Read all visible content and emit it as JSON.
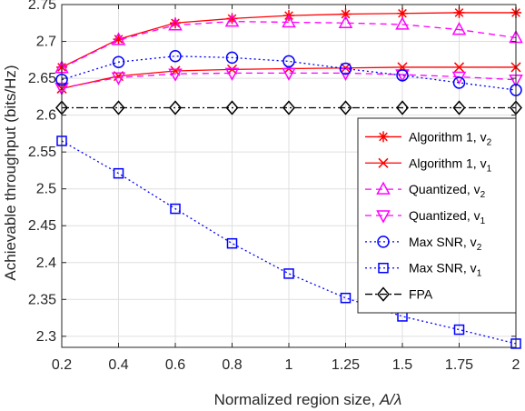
{
  "chart_data": {
    "type": "line",
    "xlabel_prefix": "Normalized region size, ",
    "xlabel_var": "A/λ",
    "ylabel": "Achievable throughput (bits/Hz)",
    "categories": [
      "0.2",
      "0.4",
      "0.6",
      "0.8",
      "1",
      "1.25",
      "1.5",
      "1.75",
      "2"
    ],
    "yticks": [
      "2.3",
      "2.35",
      "2.4",
      "2.45",
      "2.5",
      "2.55",
      "2.6",
      "2.65",
      "2.7",
      "2.75"
    ],
    "ylim": [
      2.285,
      2.75
    ],
    "grid": true,
    "legend_position": "right",
    "series": [
      {
        "name": "Algorithm 1, v",
        "sub": "2",
        "color": "#ff0000",
        "dash": "",
        "marker": "asterisk",
        "values": [
          2.665,
          2.703,
          2.725,
          2.731,
          2.735,
          2.737,
          2.738,
          2.739,
          2.739
        ]
      },
      {
        "name": "Algorithm 1, v",
        "sub": "1",
        "color": "#ff0000",
        "dash": "",
        "marker": "x",
        "values": [
          2.636,
          2.653,
          2.66,
          2.662,
          2.663,
          2.664,
          2.665,
          2.665,
          2.665
        ]
      },
      {
        "name": "Quantized, v",
        "sub": "2",
        "color": "#ff00ff",
        "dash": "7,5",
        "marker": "triangle-up",
        "values": [
          2.664,
          2.702,
          2.722,
          2.727,
          2.726,
          2.725,
          2.723,
          2.716,
          2.705
        ]
      },
      {
        "name": "Quantized, v",
        "sub": "1",
        "color": "#ff00ff",
        "dash": "7,5",
        "marker": "triangle-down",
        "values": [
          2.637,
          2.651,
          2.656,
          2.657,
          2.657,
          2.657,
          2.655,
          2.652,
          2.648
        ]
      },
      {
        "name": "Max SNR, v",
        "sub": "2",
        "color": "#0000ff",
        "dash": "2,3",
        "marker": "circle",
        "values": [
          2.648,
          2.672,
          2.68,
          2.678,
          2.673,
          2.663,
          2.654,
          2.644,
          2.634
        ]
      },
      {
        "name": "Max SNR, v",
        "sub": "1",
        "color": "#0000ff",
        "dash": "2,3",
        "marker": "square",
        "values": [
          2.565,
          2.521,
          2.473,
          2.426,
          2.385,
          2.352,
          2.327,
          2.309,
          2.29
        ]
      },
      {
        "name": "FPA",
        "sub": "",
        "color": "#000000",
        "dash": "8,3,2,3",
        "marker": "diamond",
        "values": [
          2.61,
          2.61,
          2.61,
          2.61,
          2.61,
          2.61,
          2.61,
          2.61,
          2.61
        ]
      }
    ]
  }
}
